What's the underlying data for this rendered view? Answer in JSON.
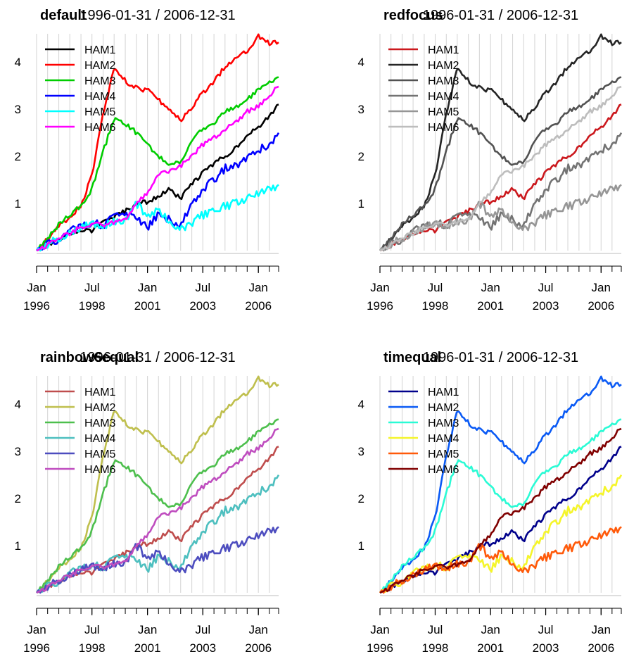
{
  "chart_data": [
    {
      "type": "line",
      "title": "default",
      "subtitle": "1996-01-31 / 2006-12-31",
      "x_range": [
        "1996-01-31",
        "2006-12-31"
      ],
      "ylim": [
        0,
        4.6
      ],
      "yticks": [
        1,
        2,
        3,
        4
      ],
      "xticks": [
        {
          "date": "1996-01-31",
          "top": "Jan",
          "bottom": "1996"
        },
        {
          "date": "1998-07-31",
          "top": "Jul",
          "bottom": "1998"
        },
        {
          "date": "2001-01-31",
          "top": "Jan",
          "bottom": "2001"
        },
        {
          "date": "2003-07-31",
          "top": "Jul",
          "bottom": "2003"
        },
        {
          "date": "2006-01-31",
          "top": "Jan",
          "bottom": "2006"
        }
      ],
      "grid": true,
      "legend": "top-left",
      "series": [
        {
          "name": "HAM1",
          "color": "#000000"
        },
        {
          "name": "HAM2",
          "color": "#ff0000"
        },
        {
          "name": "HAM3",
          "color": "#00cd00"
        },
        {
          "name": "HAM4",
          "color": "#0000ff"
        },
        {
          "name": "HAM5",
          "color": "#00ffff"
        },
        {
          "name": "HAM6",
          "color": "#ff00ff"
        }
      ]
    },
    {
      "type": "line",
      "title": "redfocus",
      "subtitle": "1996-01-31 / 2006-12-31",
      "x_range": [
        "1996-01-31",
        "2006-12-31"
      ],
      "ylim": [
        0,
        4.6
      ],
      "yticks": [
        1,
        2,
        3,
        4
      ],
      "xticks": [
        {
          "date": "1996-01-31",
          "top": "Jan",
          "bottom": "1996"
        },
        {
          "date": "1998-07-31",
          "top": "Jul",
          "bottom": "1998"
        },
        {
          "date": "2001-01-31",
          "top": "Jan",
          "bottom": "2001"
        },
        {
          "date": "2003-07-31",
          "top": "Jul",
          "bottom": "2003"
        },
        {
          "date": "2006-01-31",
          "top": "Jan",
          "bottom": "2006"
        }
      ],
      "grid": true,
      "legend": "top-left",
      "series": [
        {
          "name": "HAM1",
          "color": "#cb181d"
        },
        {
          "name": "HAM2",
          "color": "#252525"
        },
        {
          "name": "HAM3",
          "color": "#525252"
        },
        {
          "name": "HAM4",
          "color": "#737373"
        },
        {
          "name": "HAM5",
          "color": "#969696"
        },
        {
          "name": "HAM6",
          "color": "#bdbdbd"
        }
      ]
    },
    {
      "type": "line",
      "title": "rainbow6equal",
      "subtitle": "1996-01-31 / 2006-12-31",
      "x_range": [
        "1996-01-31",
        "2006-12-31"
      ],
      "ylim": [
        0,
        4.6
      ],
      "yticks": [
        1,
        2,
        3,
        4
      ],
      "xticks": [
        {
          "date": "1996-01-31",
          "top": "Jan",
          "bottom": "1996"
        },
        {
          "date": "1998-07-31",
          "top": "Jul",
          "bottom": "1998"
        },
        {
          "date": "2001-01-31",
          "top": "Jan",
          "bottom": "2001"
        },
        {
          "date": "2003-07-31",
          "top": "Jul",
          "bottom": "2003"
        },
        {
          "date": "2006-01-31",
          "top": "Jan",
          "bottom": "2006"
        }
      ],
      "grid": true,
      "legend": "top-left",
      "series": [
        {
          "name": "HAM1",
          "color": "#bf4d4d"
        },
        {
          "name": "HAM2",
          "color": "#bfbf4d"
        },
        {
          "name": "HAM3",
          "color": "#4dbf4d"
        },
        {
          "name": "HAM4",
          "color": "#4dbfbf"
        },
        {
          "name": "HAM5",
          "color": "#4d4dbf"
        },
        {
          "name": "HAM6",
          "color": "#bf4dbf"
        }
      ]
    },
    {
      "type": "line",
      "title": "timequal",
      "subtitle": "1996-01-31 / 2006-12-31",
      "x_range": [
        "1996-01-31",
        "2006-12-31"
      ],
      "ylim": [
        0,
        4.6
      ],
      "yticks": [
        1,
        2,
        3,
        4
      ],
      "xticks": [
        {
          "date": "1996-01-31",
          "top": "Jan",
          "bottom": "1996"
        },
        {
          "date": "1998-07-31",
          "top": "Jul",
          "bottom": "1998"
        },
        {
          "date": "2001-01-31",
          "top": "Jan",
          "bottom": "2001"
        },
        {
          "date": "2003-07-31",
          "top": "Jul",
          "bottom": "2003"
        },
        {
          "date": "2006-01-31",
          "top": "Jan",
          "bottom": "2006"
        }
      ],
      "grid": true,
      "legend": "top-left",
      "series": [
        {
          "name": "HAM1",
          "color": "#00008b"
        },
        {
          "name": "HAM2",
          "color": "#0a5af5"
        },
        {
          "name": "HAM3",
          "color": "#2afbd5"
        },
        {
          "name": "HAM4",
          "color": "#f5f52a"
        },
        {
          "name": "HAM5",
          "color": "#ff5a0a"
        },
        {
          "name": "HAM6",
          "color": "#800000"
        }
      ]
    }
  ],
  "series_values": {
    "x": [
      "1996-01-31",
      "1997-01-31",
      "1998-01-31",
      "1998-07-31",
      "1999-01-31",
      "1999-07-31",
      "2000-01-31",
      "2000-07-31",
      "2001-01-31",
      "2001-07-31",
      "2002-01-31",
      "2002-07-31",
      "2003-01-31",
      "2003-07-31",
      "2004-01-31",
      "2004-07-31",
      "2005-01-31",
      "2005-07-31",
      "2006-01-31",
      "2006-07-31",
      "2006-12-31"
    ],
    "HAM1": [
      0.0,
      0.22,
      0.45,
      0.42,
      0.63,
      0.7,
      0.84,
      0.98,
      1.04,
      1.15,
      1.3,
      1.1,
      1.42,
      1.65,
      1.85,
      2.0,
      2.2,
      2.45,
      2.6,
      2.85,
      3.1
    ],
    "HAM2": [
      0.0,
      0.5,
      0.95,
      1.6,
      2.9,
      3.85,
      3.6,
      3.45,
      3.4,
      3.2,
      3.0,
      2.75,
      3.05,
      3.35,
      3.6,
      3.9,
      4.1,
      4.25,
      4.55,
      4.4,
      4.42
    ],
    "HAM3": [
      0.0,
      0.55,
      0.95,
      1.3,
      2.1,
      2.8,
      2.7,
      2.5,
      2.25,
      2.0,
      1.8,
      1.9,
      2.3,
      2.6,
      2.7,
      2.95,
      3.05,
      3.2,
      3.4,
      3.55,
      3.68
    ],
    "HAM4": [
      0.0,
      0.25,
      0.55,
      0.6,
      0.55,
      0.7,
      0.75,
      0.7,
      0.5,
      0.8,
      0.65,
      0.55,
      1.0,
      1.3,
      1.5,
      1.75,
      1.8,
      1.95,
      2.15,
      2.25,
      2.5
    ],
    "HAM5": [
      0.0,
      0.25,
      0.5,
      0.55,
      0.55,
      0.6,
      0.65,
      1.0,
      0.75,
      0.85,
      0.65,
      0.45,
      0.6,
      0.75,
      0.85,
      0.95,
      1.0,
      1.1,
      1.2,
      1.3,
      1.4
    ],
    "HAM6": [
      0.0,
      0.25,
      0.5,
      0.55,
      0.55,
      0.6,
      0.65,
      1.0,
      1.2,
      1.65,
      1.7,
      1.8,
      2.0,
      2.25,
      2.4,
      2.55,
      2.75,
      2.95,
      3.05,
      3.3,
      3.48
    ]
  }
}
